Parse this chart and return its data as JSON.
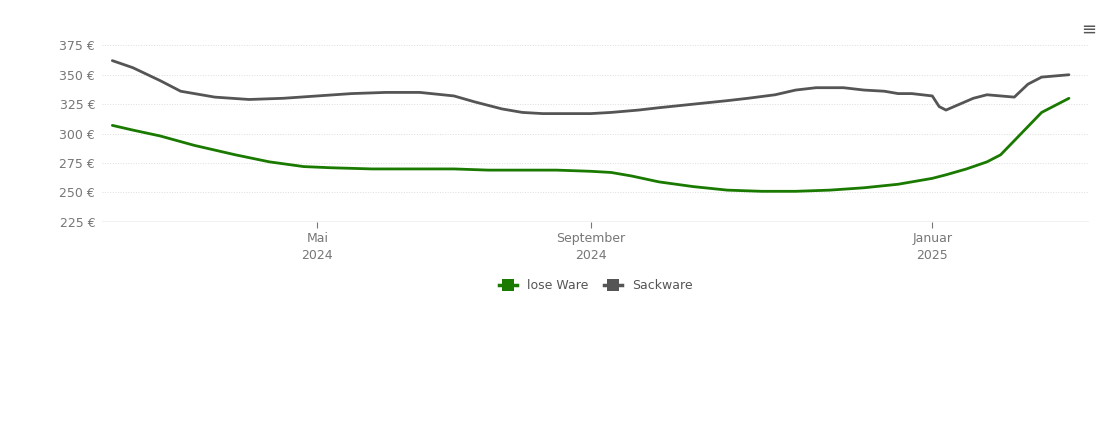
{
  "background_color": "#ffffff",
  "grid_color": "#dddddd",
  "ylim": [
    225,
    390
  ],
  "yticks": [
    225,
    250,
    275,
    300,
    325,
    350,
    375
  ],
  "x_tick_labels": [
    "Mai\n2024",
    "September\n2024",
    "Januar\n2025"
  ],
  "x_tick_positions": [
    3,
    7,
    12
  ],
  "lose_ware_color": "#1a7a00",
  "sackware_color": "#555555",
  "line_width": 2.0,
  "legend_labels": [
    "lose Ware",
    "Sackware"
  ],
  "lose_ware_x": [
    0,
    0.3,
    0.7,
    1.2,
    1.8,
    2.3,
    2.8,
    3.2,
    3.8,
    4.5,
    5.0,
    5.5,
    6.0,
    6.5,
    7.0,
    7.3,
    7.6,
    8.0,
    8.5,
    9.0,
    9.5,
    10.0,
    10.5,
    11.0,
    11.5,
    11.8,
    12.0,
    12.2,
    12.5,
    12.8,
    13.0,
    13.3,
    13.6,
    14.0
  ],
  "lose_ware_y": [
    307,
    303,
    298,
    290,
    282,
    276,
    272,
    271,
    270,
    270,
    270,
    269,
    269,
    269,
    268,
    267,
    264,
    259,
    255,
    252,
    251,
    251,
    252,
    254,
    257,
    260,
    262,
    265,
    270,
    276,
    282,
    300,
    318,
    330
  ],
  "sackware_x": [
    0,
    0.3,
    0.7,
    1.0,
    1.5,
    2.0,
    2.5,
    3.0,
    3.5,
    4.0,
    4.5,
    5.0,
    5.3,
    5.7,
    6.0,
    6.3,
    6.7,
    7.0,
    7.3,
    7.7,
    8.0,
    8.5,
    9.0,
    9.3,
    9.7,
    10.0,
    10.3,
    10.7,
    11.0,
    11.3,
    11.5,
    11.7,
    11.85,
    12.0,
    12.1,
    12.2,
    12.4,
    12.6,
    12.8,
    13.0,
    13.2,
    13.4,
    13.6,
    14.0
  ],
  "sackware_y": [
    362,
    356,
    345,
    336,
    331,
    329,
    330,
    332,
    334,
    335,
    335,
    332,
    327,
    321,
    318,
    317,
    317,
    317,
    318,
    320,
    322,
    325,
    328,
    330,
    333,
    337,
    339,
    339,
    337,
    336,
    334,
    334,
    333,
    332,
    323,
    320,
    325,
    330,
    333,
    332,
    331,
    342,
    348,
    350
  ]
}
